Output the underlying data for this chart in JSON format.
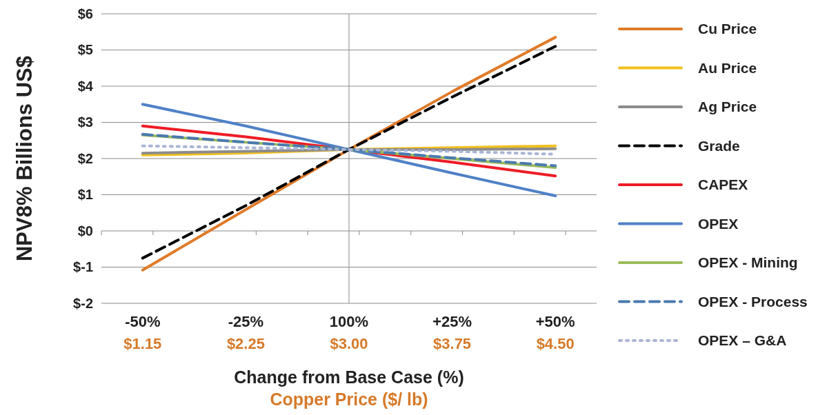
{
  "chart_data": {
    "type": "line",
    "xlabel": "Change from Base Case (%)\nCopper Price ($/ lb)",
    "ylabel": "NPV8% Billions US$",
    "categories": [
      "-50%\n$1.15",
      "-25%\n$2.25",
      "100%\n$3.00",
      "+25%\n$3.75",
      "+50%\n$4.50"
    ],
    "ylim": [
      -2,
      6
    ],
    "yticks": [
      {
        "value": -2,
        "label": "$-2"
      },
      {
        "value": -1,
        "label": "$-1"
      },
      {
        "value": 0,
        "label": "$0"
      },
      {
        "value": 1,
        "label": "$1"
      },
      {
        "value": 2,
        "label": "$2"
      },
      {
        "value": 3,
        "label": "$3"
      },
      {
        "value": 4,
        "label": "$4"
      },
      {
        "value": 5,
        "label": "$5"
      },
      {
        "value": 6,
        "label": "$6"
      }
    ],
    "grid": "y",
    "legend": "right",
    "marker": "none",
    "ref_lines": [
      {
        "axis": "x",
        "value": "100%\n$3.00",
        "color": "#8a8a8a"
      }
    ],
    "series": [
      {
        "name": "Cu Price",
        "color": "#e07a28",
        "values": [
          -1.08,
          0.59,
          2.25,
          3.85,
          5.35
        ]
      },
      {
        "name": "Au Price",
        "color": "#f2c01e",
        "values": [
          2.1,
          2.15,
          2.25,
          2.3,
          2.35
        ]
      },
      {
        "name": "Ag Price",
        "color": "#8c8c8c",
        "values": [
          2.15,
          2.2,
          2.25,
          2.25,
          2.27
        ]
      },
      {
        "name": "Grade",
        "color": "#000000",
        "values": [
          -0.75,
          0.7,
          2.25,
          3.7,
          5.1
        ],
        "line_style": "dashed"
      },
      {
        "name": "CAPEX",
        "color": "#ee1c25",
        "values": [
          2.9,
          2.6,
          2.25,
          1.9,
          1.52
        ]
      },
      {
        "name": "OPEX",
        "color": "#4f81c7",
        "values": [
          3.5,
          2.9,
          2.25,
          1.6,
          0.97
        ]
      },
      {
        "name": "OPEX - Mining",
        "color": "#9bbb59",
        "values": [
          2.65,
          2.45,
          2.25,
          2.0,
          1.75
        ]
      },
      {
        "name": "OPEX - Process",
        "color": "#4a7ab0",
        "values": [
          2.67,
          2.45,
          2.25,
          2.02,
          1.8
        ],
        "line_style": "dashed"
      },
      {
        "name": "OPEX – G&A",
        "color": "#a9b4d6",
        "values": [
          2.35,
          2.3,
          2.25,
          2.2,
          2.12
        ],
        "line_style": "dotted"
      }
    ]
  }
}
